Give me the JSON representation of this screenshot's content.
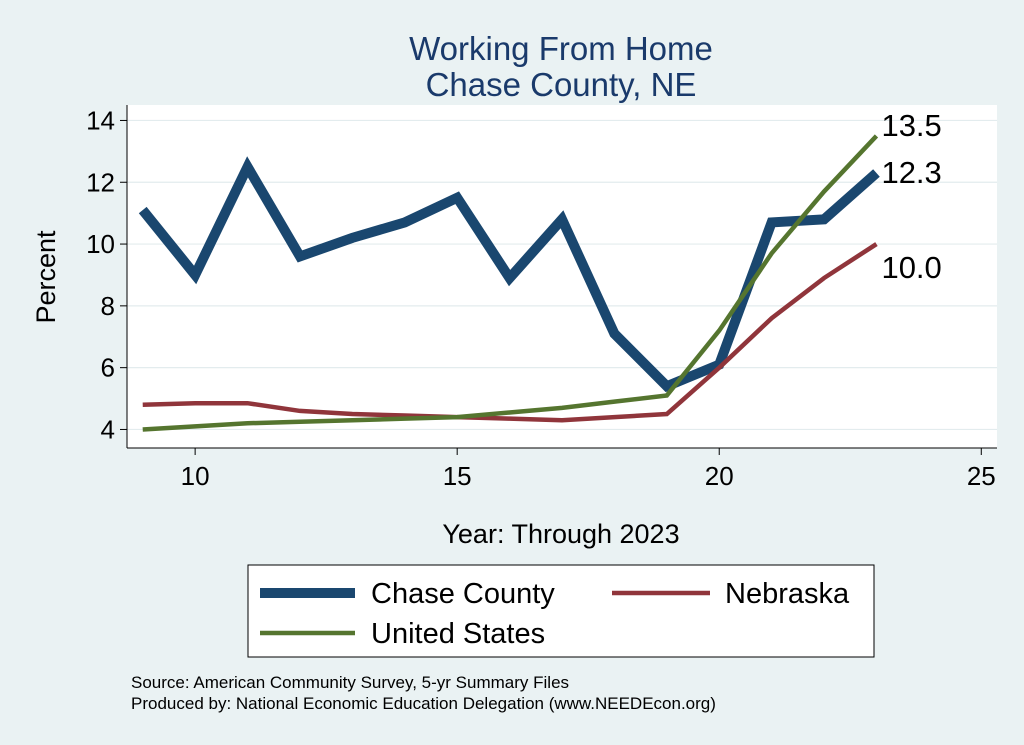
{
  "chart_data": {
    "type": "line",
    "title": "Working From Home",
    "subtitle": "Chase County, NE",
    "xlabel": "Year: Through 2023",
    "ylabel": "Percent",
    "xlim": [
      8.7,
      25.3
    ],
    "ylim": [
      3.4,
      14.5
    ],
    "x_ticks": [
      10,
      15,
      20,
      25
    ],
    "y_ticks": [
      4,
      6,
      8,
      10,
      12,
      14
    ],
    "grid": true,
    "legend_position": "bottom",
    "x": [
      9,
      10,
      11,
      12,
      13,
      14,
      15,
      16,
      17,
      18,
      19,
      20,
      21,
      22,
      23
    ],
    "series": [
      {
        "name": "Chase County",
        "color": "#1a476f",
        "values": [
          11.1,
          9.0,
          12.5,
          9.6,
          10.2,
          10.7,
          11.5,
          8.9,
          10.8,
          7.1,
          5.4,
          6.1,
          10.7,
          10.8,
          12.3
        ],
        "end_label": "12.3"
      },
      {
        "name": "Nebraska",
        "color": "#90353b",
        "values": [
          4.8,
          4.85,
          4.85,
          4.6,
          4.5,
          4.45,
          4.4,
          4.35,
          4.3,
          4.4,
          4.5,
          6.0,
          7.6,
          8.9,
          10.0
        ],
        "end_label": "10.0"
      },
      {
        "name": "United States",
        "color": "#55752f",
        "values": [
          4.0,
          4.1,
          4.2,
          4.25,
          4.3,
          4.35,
          4.4,
          4.55,
          4.7,
          4.9,
          5.1,
          7.2,
          9.7,
          11.7,
          13.5
        ],
        "end_label": "13.5"
      }
    ]
  },
  "notes": {
    "source": "Source: American Community Survey, 5-yr Summary Files",
    "produced_by": "Produced by: National Economic Education Delegation (www.NEEDEcon.org)"
  }
}
